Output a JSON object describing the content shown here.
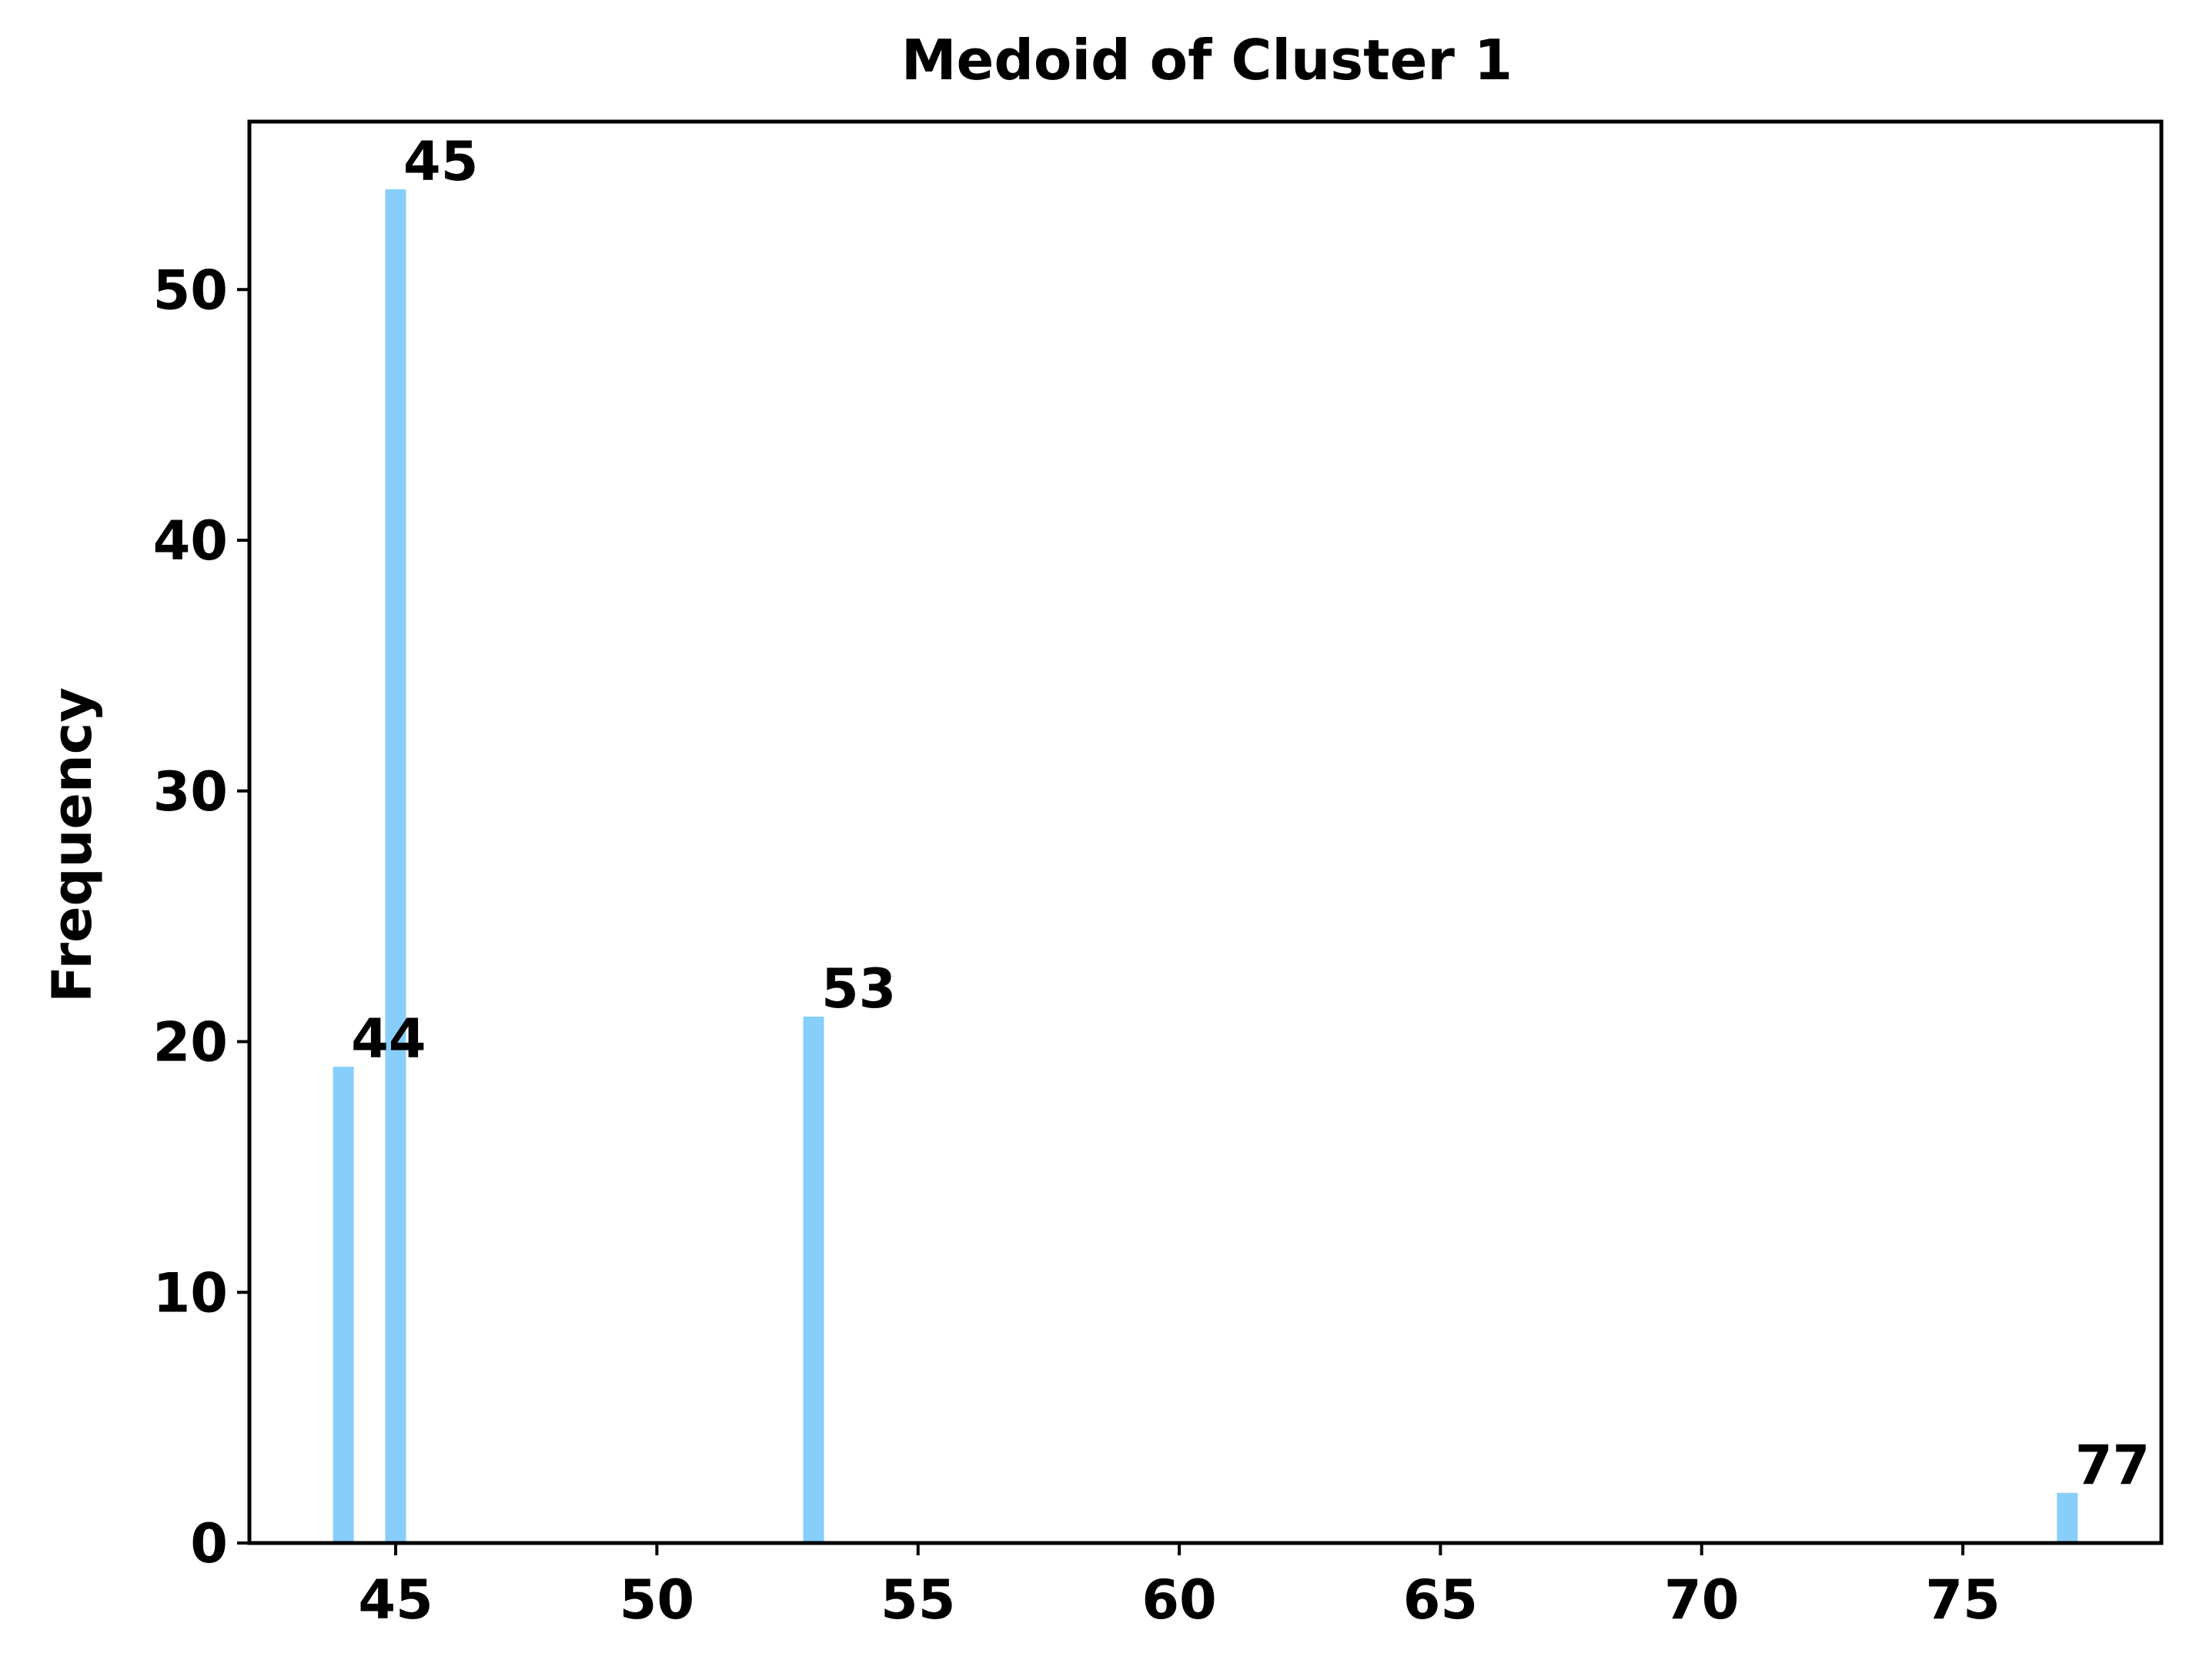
{
  "chart_data": {
    "type": "bar",
    "title": "Medoid of Cluster 1",
    "xlabel": "",
    "ylabel": "Frequency",
    "bars": [
      {
        "x": 44,
        "value": 19,
        "label": "44"
      },
      {
        "x": 45,
        "value": 54,
        "label": "45"
      },
      {
        "x": 53,
        "value": 21,
        "label": "53"
      },
      {
        "x": 77,
        "value": 2,
        "label": "77"
      }
    ],
    "xlim": [
      42.2,
      78.8
    ],
    "ylim": [
      0,
      56.7
    ],
    "xticks": [
      45,
      50,
      55,
      60,
      65,
      70,
      75
    ],
    "yticks": [
      0,
      10,
      20,
      30,
      40,
      50
    ],
    "grid": false,
    "bar_color": "#87CEFA"
  }
}
